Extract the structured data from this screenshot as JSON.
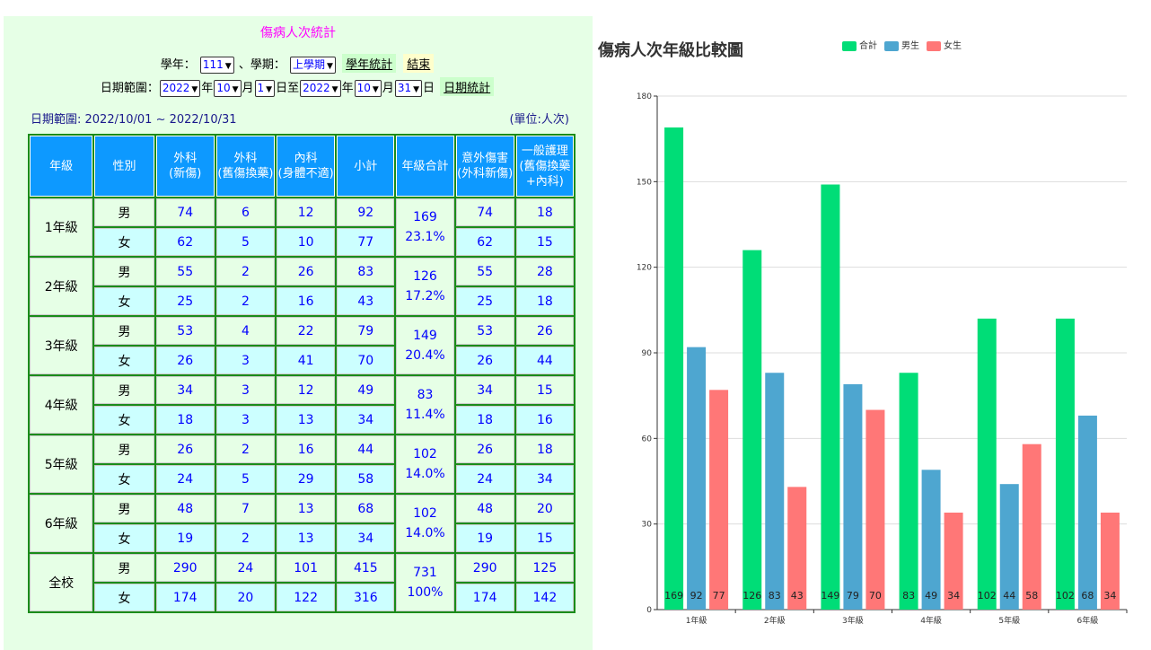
{
  "report": {
    "title": "傷病人次統計",
    "year_label": "學年：",
    "year_value": "111",
    "term_label": "、學期：",
    "term_value": "上學期",
    "year_stats_button": "學年統計",
    "end_button": "結束",
    "date_label": "日期範圍：",
    "from_year": "2022",
    "from_month": "10",
    "from_day": "1",
    "to_year": "2022",
    "to_month": "10",
    "to_day": "31",
    "unit_year": "年",
    "unit_month": "月",
    "unit_day_to": "日至",
    "unit_day": "日",
    "date_stats_button": "日期統計",
    "date_range_text": "日期範圍: 2022/10/01 ~ 2022/10/31",
    "unit_text": "(單位:人次)"
  },
  "table": {
    "headers": [
      "年級",
      "性別",
      "外科\n(新傷)",
      "外科\n(舊傷換藥)",
      "內科\n(身體不適)",
      "小計",
      "年級合計",
      "意外傷害\n(外科新傷)",
      "一般護理\n(舊傷換藥\n+內科)"
    ],
    "male": "男",
    "female": "女",
    "grades": [
      {
        "name": "1年級",
        "total": "169",
        "pct": "23.1%",
        "boy": [
          "74",
          "6",
          "12",
          "92",
          "74",
          "18"
        ],
        "girl": [
          "62",
          "5",
          "10",
          "77",
          "62",
          "15"
        ]
      },
      {
        "name": "2年級",
        "total": "126",
        "pct": "17.2%",
        "boy": [
          "55",
          "2",
          "26",
          "83",
          "55",
          "28"
        ],
        "girl": [
          "25",
          "2",
          "16",
          "43",
          "25",
          "18"
        ]
      },
      {
        "name": "3年級",
        "total": "149",
        "pct": "20.4%",
        "boy": [
          "53",
          "4",
          "22",
          "79",
          "53",
          "26"
        ],
        "girl": [
          "26",
          "3",
          "41",
          "70",
          "26",
          "44"
        ]
      },
      {
        "name": "4年級",
        "total": "83",
        "pct": "11.4%",
        "boy": [
          "34",
          "3",
          "12",
          "49",
          "34",
          "15"
        ],
        "girl": [
          "18",
          "3",
          "13",
          "34",
          "18",
          "16"
        ]
      },
      {
        "name": "5年級",
        "total": "102",
        "pct": "14.0%",
        "boy": [
          "26",
          "2",
          "16",
          "44",
          "26",
          "18"
        ],
        "girl": [
          "24",
          "5",
          "29",
          "58",
          "24",
          "34"
        ]
      },
      {
        "name": "6年級",
        "total": "102",
        "pct": "14.0%",
        "boy": [
          "48",
          "7",
          "13",
          "68",
          "48",
          "20"
        ],
        "girl": [
          "19",
          "2",
          "13",
          "34",
          "19",
          "15"
        ]
      },
      {
        "name": "全校",
        "total": "731",
        "pct": "100%",
        "boy": [
          "290",
          "24",
          "101",
          "415",
          "290",
          "125"
        ],
        "girl": [
          "174",
          "20",
          "122",
          "316",
          "174",
          "142"
        ]
      }
    ]
  },
  "chart_data": {
    "type": "bar",
    "title": "傷病人次年級比較圖",
    "categories": [
      "1年級",
      "2年級",
      "3年級",
      "4年級",
      "5年級",
      "6年級"
    ],
    "series": [
      {
        "name": "合計",
        "color": "#00dd77",
        "values": [
          169,
          126,
          149,
          83,
          102,
          102
        ]
      },
      {
        "name": "男生",
        "color": "#4ea6d0",
        "values": [
          92,
          83,
          79,
          49,
          44,
          68
        ]
      },
      {
        "name": "女生",
        "color": "#ff7777",
        "values": [
          77,
          43,
          70,
          34,
          58,
          34
        ]
      }
    ],
    "yticks": [
      0,
      30,
      60,
      90,
      120,
      150,
      180
    ],
    "ylim": [
      0,
      180
    ],
    "legend_position": "top",
    "grid": true
  }
}
